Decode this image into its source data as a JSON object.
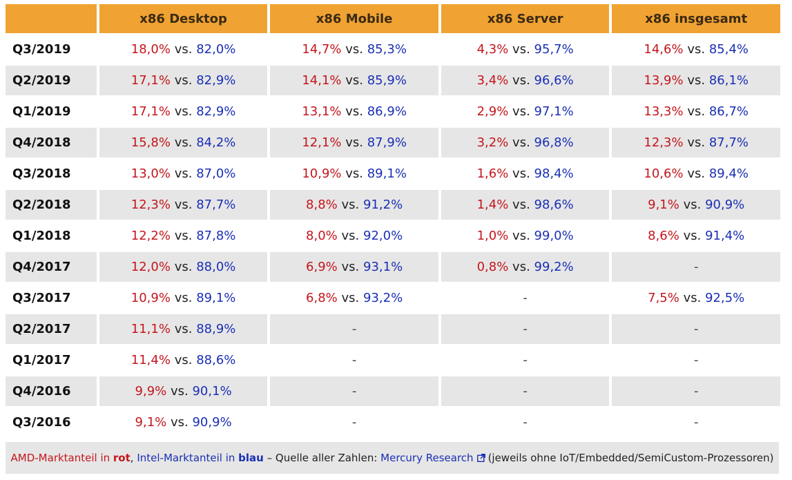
{
  "table": {
    "headers": [
      "x86 Desktop",
      "x86 Mobile",
      "x86 Server",
      "x86 insgesamt"
    ],
    "vs_label": "vs.",
    "rows": [
      {
        "quarter": "Q3/2019",
        "cells": [
          {
            "amd": "18,0%",
            "intel": "82,0%"
          },
          {
            "amd": "14,7%",
            "intel": "85,3%"
          },
          {
            "amd": "4,3%",
            "intel": "95,7%"
          },
          {
            "amd": "14,6%",
            "intel": "85,4%"
          }
        ]
      },
      {
        "quarter": "Q2/2019",
        "cells": [
          {
            "amd": "17,1%",
            "intel": "82,9%"
          },
          {
            "amd": "14,1%",
            "intel": "85,9%"
          },
          {
            "amd": "3,4%",
            "intel": "96,6%"
          },
          {
            "amd": "13,9%",
            "intel": "86,1%"
          }
        ]
      },
      {
        "quarter": "Q1/2019",
        "cells": [
          {
            "amd": "17,1%",
            "intel": "82,9%"
          },
          {
            "amd": "13,1%",
            "intel": "86,9%"
          },
          {
            "amd": "2,9%",
            "intel": "97,1%"
          },
          {
            "amd": "13,3%",
            "intel": "86,7%"
          }
        ]
      },
      {
        "quarter": "Q4/2018",
        "cells": [
          {
            "amd": "15,8%",
            "intel": "84,2%"
          },
          {
            "amd": "12,1%",
            "intel": "87,9%"
          },
          {
            "amd": "3,2%",
            "intel": "96,8%"
          },
          {
            "amd": "12,3%",
            "intel": "87,7%"
          }
        ]
      },
      {
        "quarter": "Q3/2018",
        "cells": [
          {
            "amd": "13,0%",
            "intel": "87,0%"
          },
          {
            "amd": "10,9%",
            "intel": "89,1%"
          },
          {
            "amd": "1,6%",
            "intel": "98,4%"
          },
          {
            "amd": "10,6%",
            "intel": "89,4%"
          }
        ]
      },
      {
        "quarter": "Q2/2018",
        "cells": [
          {
            "amd": "12,3%",
            "intel": "87,7%"
          },
          {
            "amd": "8,8%",
            "intel": "91,2%"
          },
          {
            "amd": "1,4%",
            "intel": "98,6%"
          },
          {
            "amd": "9,1%",
            "intel": "90,9%"
          }
        ]
      },
      {
        "quarter": "Q1/2018",
        "cells": [
          {
            "amd": "12,2%",
            "intel": "87,8%"
          },
          {
            "amd": "8,0%",
            "intel": "92,0%"
          },
          {
            "amd": "1,0%",
            "intel": "99,0%"
          },
          {
            "amd": "8,6%",
            "intel": "91,4%"
          }
        ]
      },
      {
        "quarter": "Q4/2017",
        "cells": [
          {
            "amd": "12,0%",
            "intel": "88,0%"
          },
          {
            "amd": "6,9%",
            "intel": "93,1%"
          },
          {
            "amd": "0,8%",
            "intel": "99,2%"
          },
          {
            "dash": "-"
          }
        ]
      },
      {
        "quarter": "Q3/2017",
        "cells": [
          {
            "amd": "10,9%",
            "intel": "89,1%"
          },
          {
            "amd": "6,8%",
            "intel": "93,2%"
          },
          {
            "dash": "-"
          },
          {
            "amd": "7,5%",
            "intel": "92,5%"
          }
        ]
      },
      {
        "quarter": "Q2/2017",
        "cells": [
          {
            "amd": "11,1%",
            "intel": "88,9%"
          },
          {
            "dash": "-"
          },
          {
            "dash": "-"
          },
          {
            "dash": "-"
          }
        ]
      },
      {
        "quarter": "Q1/2017",
        "cells": [
          {
            "amd": "11,4%",
            "intel": "88,6%"
          },
          {
            "dash": "-"
          },
          {
            "dash": "-"
          },
          {
            "dash": "-"
          }
        ]
      },
      {
        "quarter": "Q4/2016",
        "cells": [
          {
            "amd": "9,9%",
            "intel": "90,1%"
          },
          {
            "dash": "-"
          },
          {
            "dash": "-"
          },
          {
            "dash": "-"
          }
        ]
      },
      {
        "quarter": "Q3/2016",
        "cells": [
          {
            "amd": "9,1%",
            "intel": "90,9%"
          },
          {
            "dash": "-"
          },
          {
            "dash": "-"
          },
          {
            "dash": "-"
          }
        ]
      }
    ]
  },
  "footer": {
    "amd_text": "AMD-Marktanteil in ",
    "amd_word": "rot",
    "sep": ", ",
    "intel_text": "Intel-Marktanteil in ",
    "intel_word": "blau",
    "source_text": " – Quelle aller Zahlen: ",
    "link_text": "Mercury Research",
    "link_icon": "external-link-icon",
    "note": "(jeweils ohne IoT/Embedded/SemiCustom-Prozessoren)"
  },
  "colors": {
    "header_bg": "#f0a233",
    "amd": "#c4161c",
    "intel": "#1a2fb4",
    "row_alt": "#e6e6e6"
  }
}
